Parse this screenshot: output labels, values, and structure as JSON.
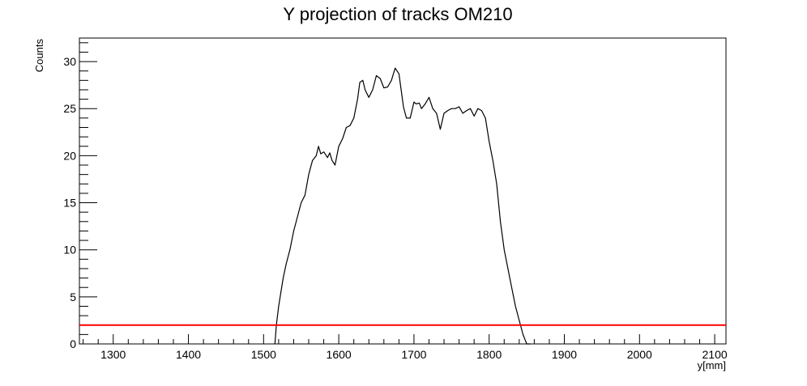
{
  "chart_data": {
    "type": "line",
    "title": "Y projection of tracks OM210",
    "xlabel": "y[mm]",
    "ylabel": "Counts",
    "xlim": [
      1255,
      2115
    ],
    "ylim": [
      0,
      32.5
    ],
    "xticks": [
      1300,
      1400,
      1500,
      1600,
      1700,
      1800,
      1900,
      2000,
      2100
    ],
    "yticks": [
      0,
      5,
      10,
      15,
      20,
      25,
      30
    ],
    "grid": false,
    "legend": "none",
    "series": [
      {
        "color": "#000000",
        "x": [
          1515,
          1517,
          1520,
          1523,
          1526,
          1530,
          1535,
          1540,
          1545,
          1550,
          1555,
          1560,
          1565,
          1570,
          1573,
          1576,
          1580,
          1585,
          1588,
          1591,
          1595,
          1600,
          1605,
          1610,
          1615,
          1620,
          1625,
          1628,
          1632,
          1635,
          1640,
          1645,
          1650,
          1655,
          1660,
          1665,
          1670,
          1675,
          1680,
          1683,
          1686,
          1690,
          1695,
          1700,
          1703,
          1707,
          1710,
          1715,
          1720,
          1725,
          1730,
          1735,
          1740,
          1745,
          1750,
          1755,
          1760,
          1765,
          1770,
          1775,
          1780,
          1785,
          1790,
          1795,
          1800,
          1805,
          1810,
          1815,
          1820,
          1825,
          1830,
          1835,
          1840,
          1845,
          1848,
          1850,
          1852,
          1855
        ],
        "values": [
          0,
          2,
          4,
          5.5,
          7,
          8.5,
          10,
          12,
          13.5,
          15,
          15.8,
          18,
          19.5,
          20,
          21,
          20.2,
          20.4,
          19.8,
          20.3,
          19.5,
          19,
          21,
          21.8,
          23,
          23.2,
          24,
          26,
          27.8,
          28,
          27,
          26.2,
          27,
          28.5,
          28.2,
          27.2,
          27.3,
          28,
          29.3,
          28.7,
          27,
          25.2,
          24,
          24,
          25.7,
          25.5,
          25.6,
          25,
          25.5,
          26.2,
          25,
          24.5,
          22.8,
          24.5,
          24.8,
          25,
          25,
          25.2,
          24.5,
          24.8,
          25,
          24.2,
          25,
          24.8,
          24,
          21.5,
          19.5,
          17,
          13,
          10,
          8,
          6,
          4,
          2.5,
          1,
          0.4,
          0,
          0,
          0
        ]
      },
      {
        "color": "#ff0000",
        "x": [
          1255,
          2115
        ],
        "values": [
          2,
          2
        ]
      }
    ]
  }
}
